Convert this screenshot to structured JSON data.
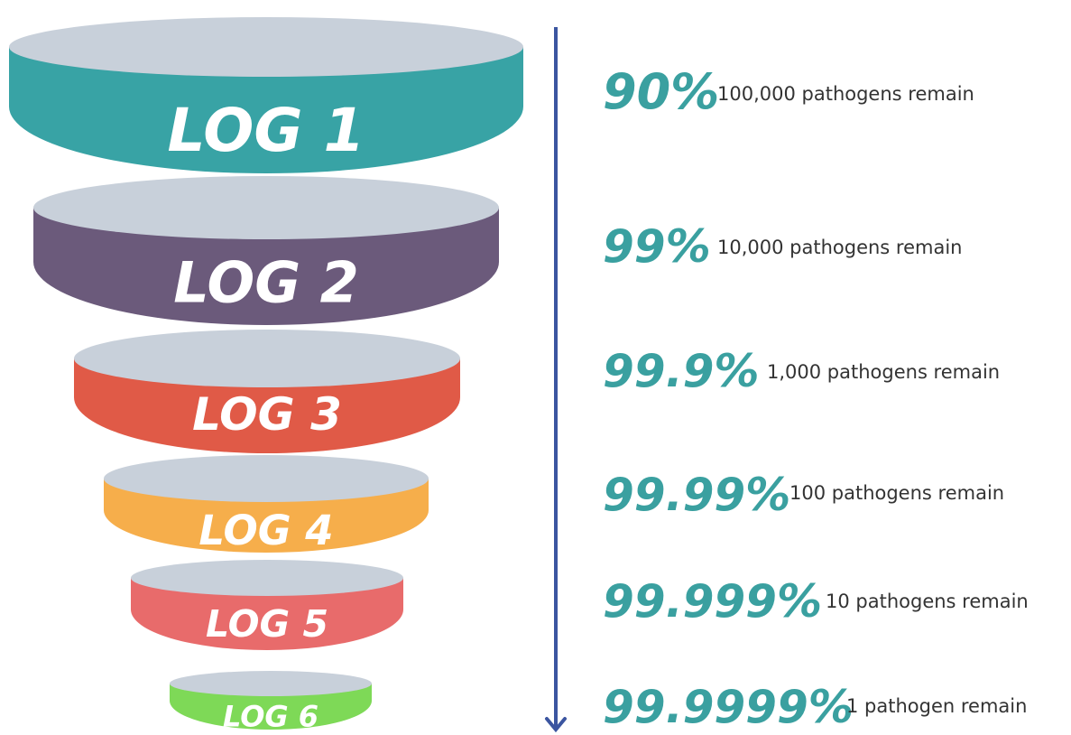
{
  "levels": [
    {
      "label": "LOG 1",
      "percent": "90%",
      "remaining": "100,000 pathogens remain",
      "color": "#38a3a5"
    },
    {
      "label": "LOG 2",
      "percent": "99%",
      "remaining": "10,000 pathogens remain",
      "color": "#6b5a7b"
    },
    {
      "label": "LOG 3",
      "percent": "99.9%",
      "remaining": "1,000 pathogens remain",
      "color": "#e05a47"
    },
    {
      "label": "LOG 4",
      "percent": "99.99%",
      "remaining": "100 pathogens remain",
      "color": "#f6ae4b"
    },
    {
      "label": "LOG 5",
      "percent": "99.999%",
      "remaining": "10 pathogens remain",
      "color": "#e86b6b"
    },
    {
      "label": "LOG 6",
      "percent": "99.9999%",
      "remaining": "1 pathogen remain",
      "color": "#7ed957"
    }
  ]
}
